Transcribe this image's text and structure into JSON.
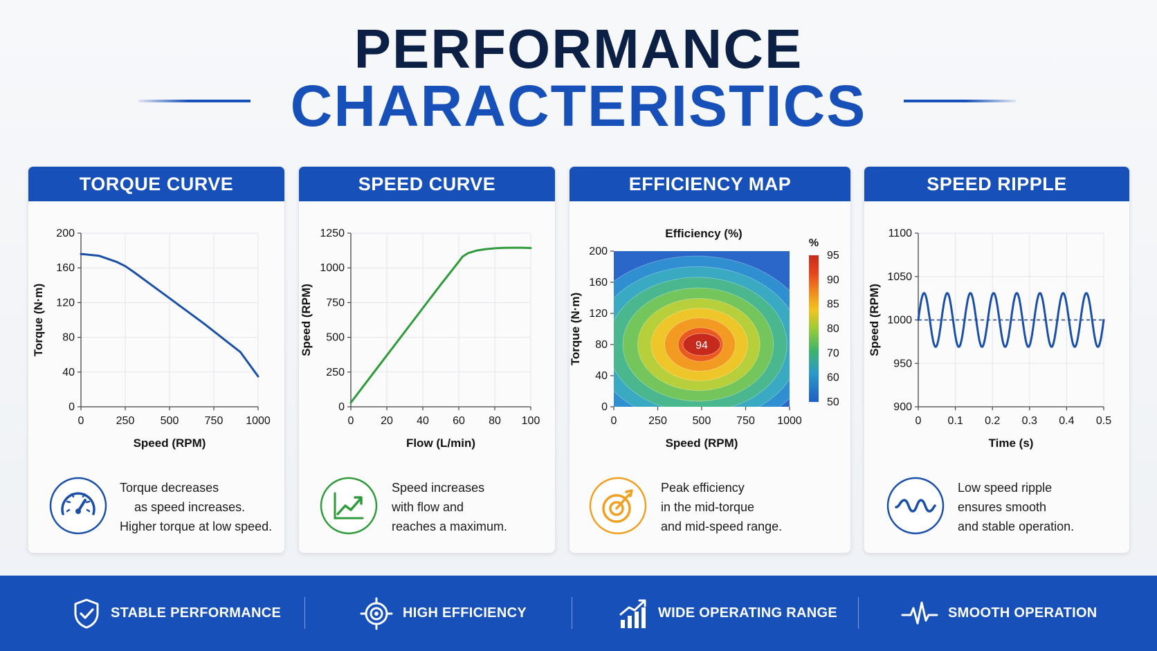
{
  "header": {
    "title_line1": "PERFORMANCE",
    "title_line2": "CHARACTERISTICS"
  },
  "colors": {
    "brand_blue": "#1650b8",
    "title_dark": "#0c1f45",
    "torque_line": "#1a4fa8",
    "speed_line": "#2e9a3a",
    "accent_orange": "#f0a020"
  },
  "cards": [
    {
      "heading": "TORQUE CURVE",
      "icon": "speedometer-icon",
      "description": [
        "Torque decreases",
        "as speed increases.",
        "Higher torque at low speed."
      ]
    },
    {
      "heading": "SPEED CURVE",
      "icon": "trend-up-icon",
      "description": [
        "Speed increases",
        "with flow and",
        "reaches a maximum."
      ]
    },
    {
      "heading": "EFFICIENCY MAP",
      "icon": "target-icon",
      "description": [
        "Peak efficiency",
        "in the mid-torque",
        "and mid-speed range."
      ]
    },
    {
      "heading": "SPEED RIPPLE",
      "icon": "wave-icon",
      "description": [
        "Low speed ripple",
        "ensures smooth",
        "and stable operation."
      ]
    }
  ],
  "footer": {
    "items": [
      {
        "label": "STABLE PERFORMANCE",
        "icon": "shield-check-icon"
      },
      {
        "label": "HIGH EFFICIENCY",
        "icon": "target-icon"
      },
      {
        "label": "WIDE OPERATING RANGE",
        "icon": "bar-growth-icon"
      },
      {
        "label": "SMOOTH OPERATION",
        "icon": "pulse-icon"
      }
    ]
  },
  "chart_data": [
    {
      "type": "line",
      "title": "",
      "xlabel": "Speed (RPM)",
      "ylabel": "Torque (N·m)",
      "xlim": [
        0,
        1000
      ],
      "ylim": [
        0,
        200
      ],
      "xticks": [
        "0",
        "250",
        "500",
        "750",
        "1000"
      ],
      "yticks": [
        "0",
        "40",
        "80",
        "120",
        "160",
        "200"
      ],
      "grid": true,
      "series": [
        {
          "x": [
            0,
            100,
            200,
            250,
            300,
            400,
            500,
            600,
            700,
            800,
            900,
            1000
          ],
          "y": [
            176,
            174,
            167,
            162,
            155,
            140,
            125,
            110,
            95,
            79,
            63,
            35
          ]
        }
      ]
    },
    {
      "type": "line",
      "title": "",
      "xlabel": "Flow (L/min)",
      "ylabel": "Speed (RPM)",
      "xlim": [
        0,
        100
      ],
      "ylim": [
        0,
        1250
      ],
      "xticks": [
        "0",
        "20",
        "40",
        "60",
        "80",
        "100"
      ],
      "yticks": [
        "0",
        "250",
        "500",
        "750",
        "1000",
        "1250"
      ],
      "grid": true,
      "series": [
        {
          "x": [
            0,
            10,
            20,
            30,
            40,
            50,
            60,
            62,
            65,
            70,
            75,
            80,
            85,
            90,
            95,
            100
          ],
          "y": [
            30,
            200,
            370,
            540,
            710,
            880,
            1045,
            1080,
            1105,
            1125,
            1135,
            1141,
            1144,
            1145,
            1145,
            1143
          ]
        }
      ]
    },
    {
      "type": "heatmap",
      "title": "Efficiency (%)",
      "xlabel": "Speed (RPM)",
      "ylabel": "Torque (N·m)",
      "xlim": [
        0,
        1000
      ],
      "ylim": [
        0,
        200
      ],
      "xticks": [
        "0",
        "250",
        "500",
        "750",
        "1000"
      ],
      "yticks": [
        "0",
        "40",
        "80",
        "120",
        "160",
        "200"
      ],
      "colorbar": {
        "label": "%",
        "ticks": [
          "95",
          "90",
          "85",
          "80",
          "70",
          "60",
          "50"
        ],
        "range": [
          50,
          95
        ]
      },
      "peak": {
        "speed": 500,
        "torque": 80,
        "efficiency": 94
      },
      "peak_label": "94"
    },
    {
      "type": "line",
      "title": "",
      "xlabel": "Time (s)",
      "ylabel": "Speed (RPM)",
      "xlim": [
        0,
        0.5
      ],
      "ylim": [
        900,
        1100
      ],
      "xticks": [
        "0",
        "0.1",
        "0.2",
        "0.3",
        "0.4",
        "0.5"
      ],
      "yticks": [
        "900",
        "950",
        "1000",
        "1050",
        "1100"
      ],
      "grid": true,
      "reference_line": 1000,
      "series": [
        {
          "mean": 1000,
          "amplitude": 31,
          "cycles": 8
        }
      ]
    }
  ]
}
